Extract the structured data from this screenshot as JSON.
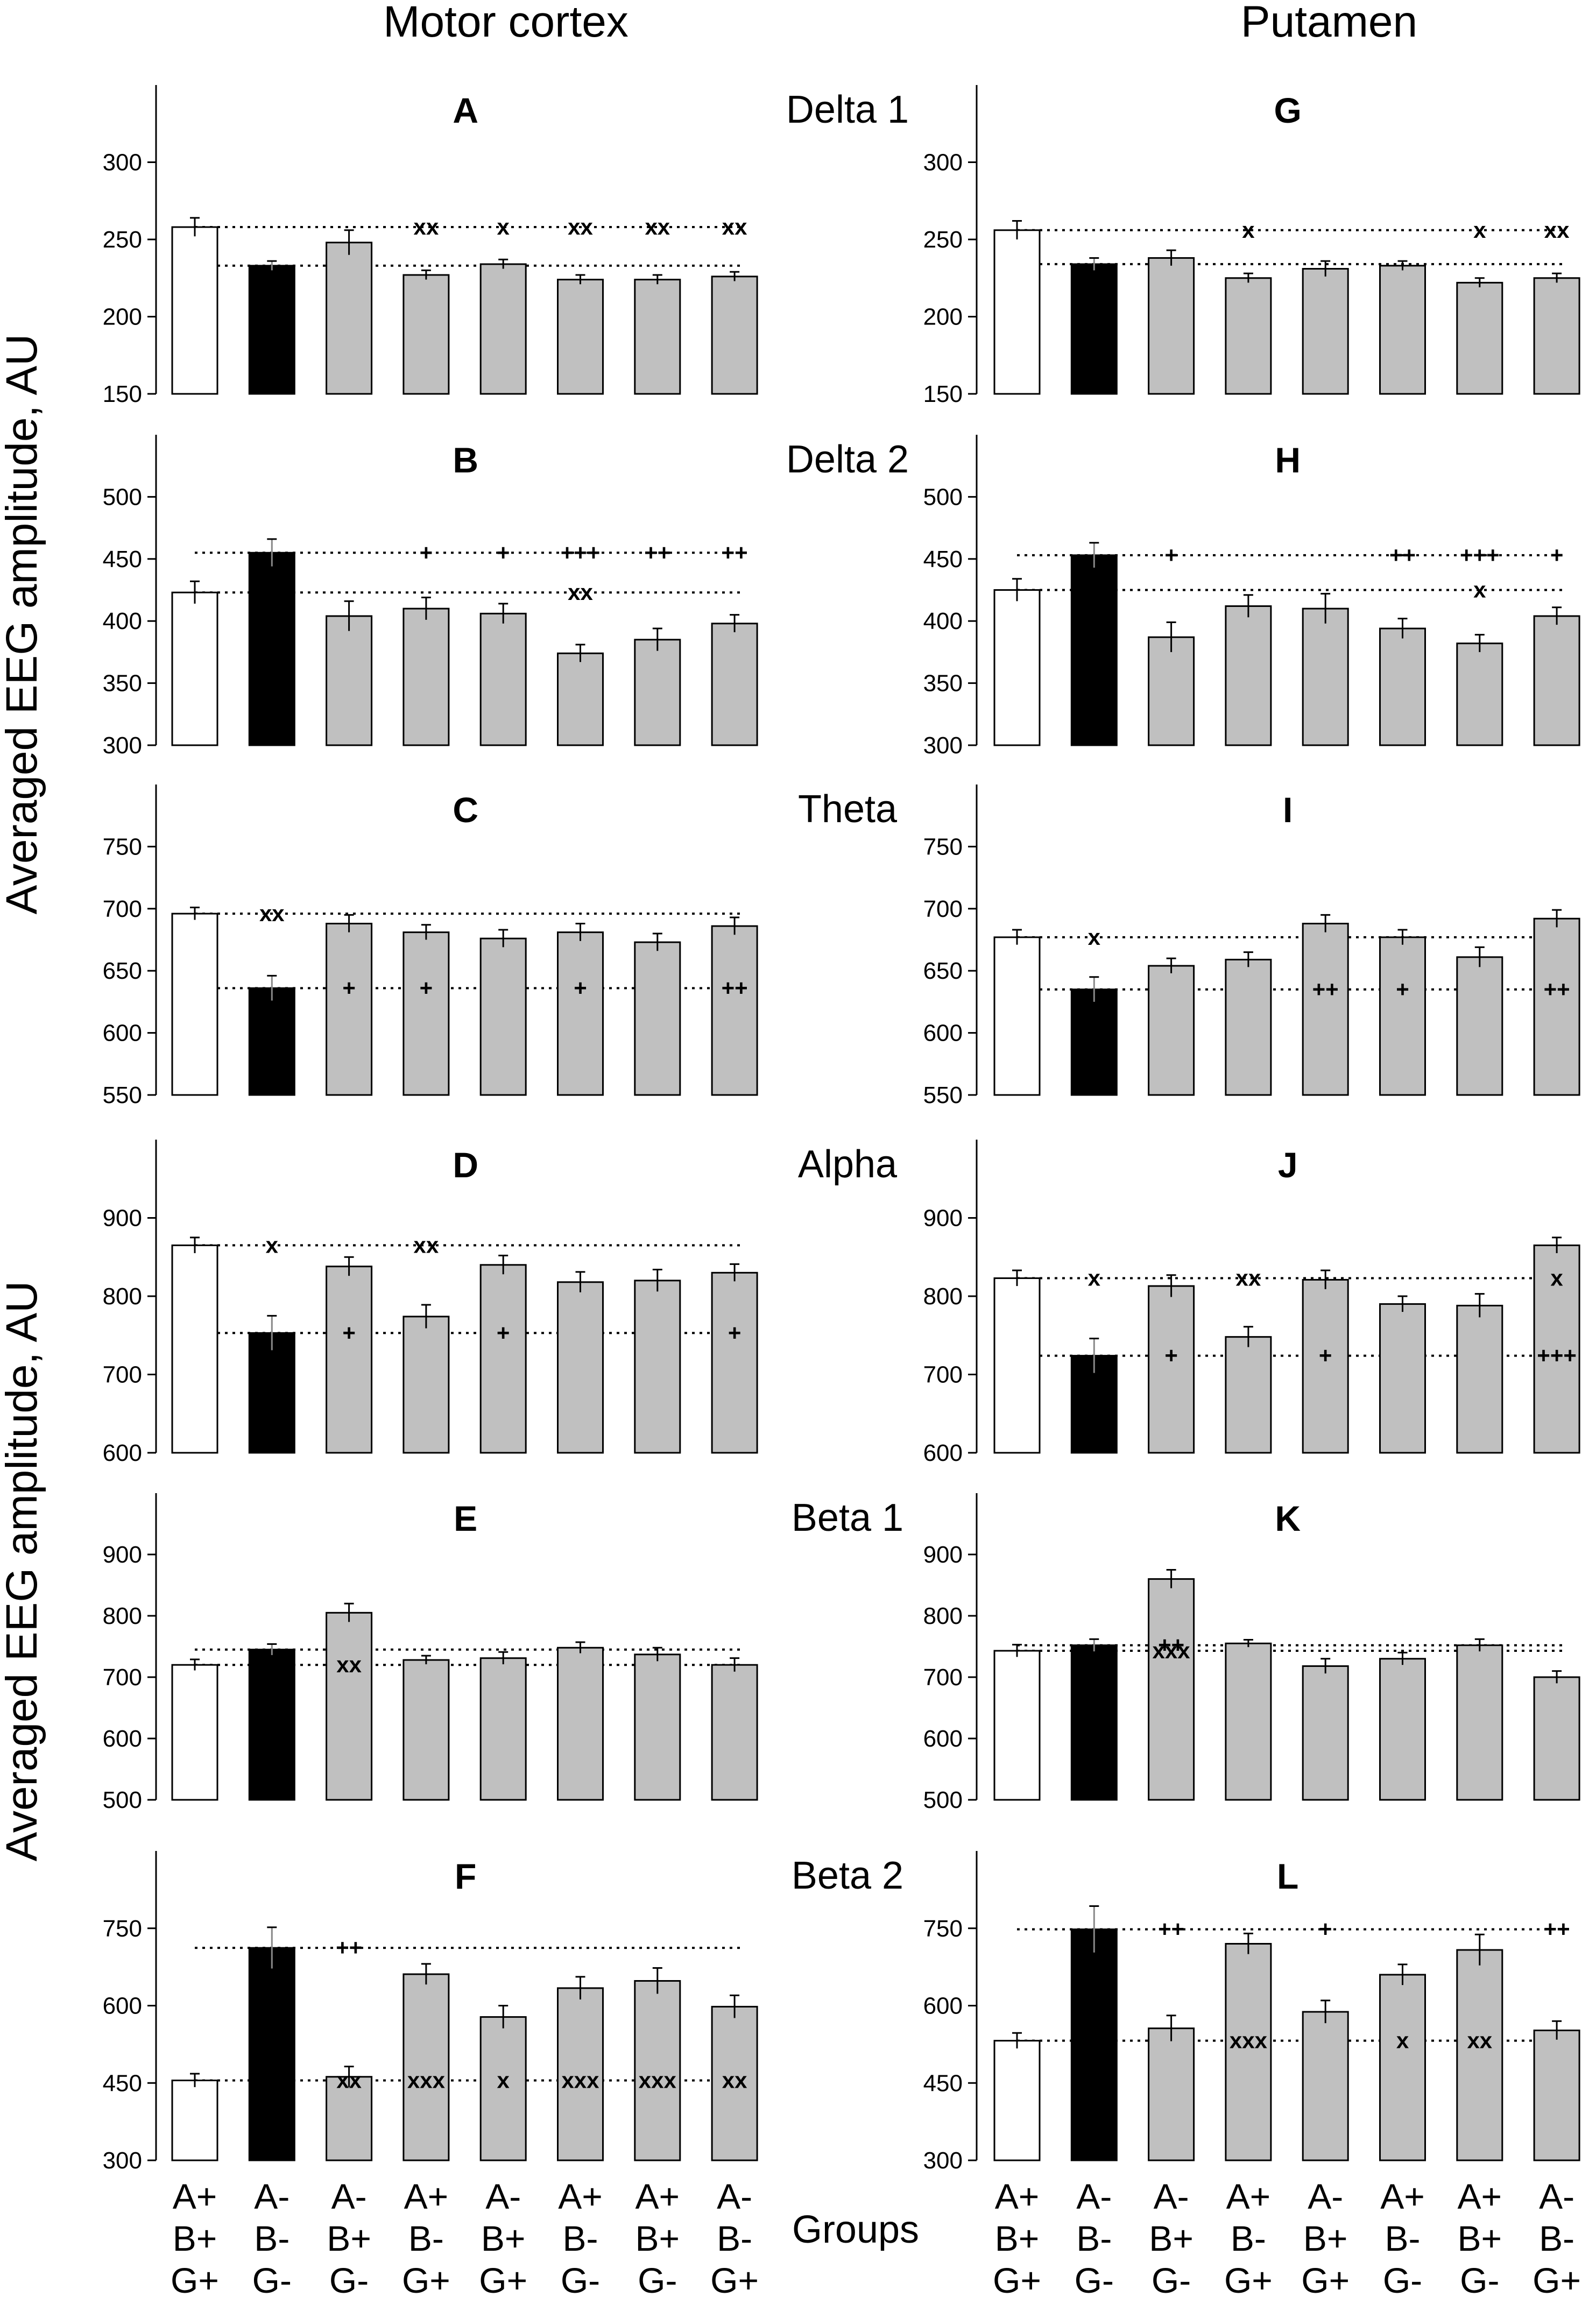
{
  "figure": {
    "left_title": "Motor cortex",
    "right_title": "Putamen",
    "ylabel_top": "Averaged EEG amplitude, AU",
    "ylabel_bottom": "Averaged EEG amplitude, AU",
    "groups_label": "Groups",
    "group_labels": [
      [
        "A+",
        "B+",
        "G+"
      ],
      [
        "A-",
        "B-",
        "G-"
      ],
      [
        "A-",
        "B+",
        "G-"
      ],
      [
        "A+",
        "B-",
        "G+"
      ],
      [
        "A-",
        "B+",
        "G+"
      ],
      [
        "A+",
        "B-",
        "G-"
      ],
      [
        "A+",
        "B+",
        "G-"
      ],
      [
        "A-",
        "B-",
        "G+"
      ]
    ],
    "bar_fills": [
      "#ffffff",
      "#000000",
      "#c0c0c0",
      "#c0c0c0",
      "#c0c0c0",
      "#c0c0c0",
      "#c0c0c0",
      "#c0c0c0"
    ]
  },
  "chart_data": [
    {
      "type": "bar",
      "panel": "A",
      "band": "Delta 1",
      "region": "Motor cortex",
      "ylim": [
        150,
        350
      ],
      "yticks": [
        150,
        200,
        250,
        300
      ],
      "categories": [
        "A+B+G+",
        "A-B-G-",
        "A-B+G-",
        "A+B-G+",
        "A-B+G+",
        "A+B-G-",
        "A+B+G-",
        "A-B-G+"
      ],
      "values": [
        258,
        233,
        248,
        227,
        234,
        224,
        224,
        226
      ],
      "errors": [
        6,
        3,
        8,
        3,
        3,
        3,
        3,
        3
      ],
      "ref_lines": [
        258,
        233
      ],
      "annotations": [
        {
          "group": 3,
          "value": 258,
          "text": "xx",
          "color": "#000000"
        },
        {
          "group": 4,
          "value": 258,
          "text": "x",
          "color": "#000000"
        },
        {
          "group": 5,
          "value": 258,
          "text": "xx",
          "color": "#000000"
        },
        {
          "group": 6,
          "value": 258,
          "text": "xx",
          "color": "#000000"
        },
        {
          "group": 7,
          "value": 258,
          "text": "xx",
          "color": "#000000"
        }
      ]
    },
    {
      "type": "bar",
      "panel": "B",
      "band": "Delta 2",
      "region": "Motor cortex",
      "ylim": [
        300,
        550
      ],
      "yticks": [
        300,
        350,
        400,
        450,
        500
      ],
      "categories": [
        "A+B+G+",
        "A-B-G-",
        "A-B+G-",
        "A+B-G+",
        "A-B+G+",
        "A+B-G-",
        "A+B+G-",
        "A-B-G+"
      ],
      "values": [
        423,
        455,
        404,
        410,
        406,
        374,
        385,
        398
      ],
      "errors": [
        9,
        11,
        12,
        9,
        8,
        7,
        9,
        7
      ],
      "ref_lines": [
        455,
        423
      ],
      "annotations": [
        {
          "group": 3,
          "value": 455,
          "text": "+",
          "color": "#000000"
        },
        {
          "group": 4,
          "value": 455,
          "text": "+",
          "color": "#000000"
        },
        {
          "group": 5,
          "value": 455,
          "text": "+++",
          "color": "#000000"
        },
        {
          "group": 6,
          "value": 455,
          "text": "++",
          "color": "#000000"
        },
        {
          "group": 7,
          "value": 455,
          "text": "++",
          "color": "#000000"
        },
        {
          "group": 5,
          "value": 423,
          "text": "xx",
          "color": "#000000"
        }
      ]
    },
    {
      "type": "bar",
      "panel": "C",
      "band": "Theta",
      "region": "Motor cortex",
      "ylim": [
        550,
        800
      ],
      "yticks": [
        550,
        600,
        650,
        700,
        750
      ],
      "categories": [
        "A+B+G+",
        "A-B-G-",
        "A-B+G-",
        "A+B-G+",
        "A-B+G+",
        "A+B-G-",
        "A+B+G-",
        "A-B-G+"
      ],
      "values": [
        696,
        636,
        688,
        681,
        676,
        681,
        673,
        686
      ],
      "errors": [
        5,
        10,
        7,
        6,
        7,
        7,
        7,
        7
      ],
      "ref_lines": [
        696,
        636
      ],
      "annotations": [
        {
          "group": 1,
          "value": 696,
          "text": "xx",
          "color": "#000000"
        },
        {
          "group": 2,
          "value": 636,
          "text": "+",
          "color": "#000000"
        },
        {
          "group": 3,
          "value": 636,
          "text": "+",
          "color": "#000000"
        },
        {
          "group": 5,
          "value": 636,
          "text": "+",
          "color": "#000000"
        },
        {
          "group": 7,
          "value": 636,
          "text": "++",
          "color": "#000000"
        }
      ]
    },
    {
      "type": "bar",
      "panel": "D",
      "band": "Alpha",
      "region": "Motor cortex",
      "ylim": [
        600,
        1000
      ],
      "yticks": [
        600,
        700,
        800,
        900
      ],
      "categories": [
        "A+B+G+",
        "A-B-G-",
        "A-B+G-",
        "A+B-G+",
        "A-B+G+",
        "A+B-G-",
        "A+B+G-",
        "A-B-G+"
      ],
      "values": [
        865,
        753,
        838,
        774,
        840,
        818,
        820,
        830
      ],
      "errors": [
        10,
        22,
        12,
        15,
        12,
        13,
        14,
        11
      ],
      "ref_lines": [
        865,
        753
      ],
      "annotations": [
        {
          "group": 1,
          "value": 865,
          "text": "x",
          "color": "#000000"
        },
        {
          "group": 3,
          "value": 865,
          "text": "xx",
          "color": "#000000"
        },
        {
          "group": 2,
          "value": 753,
          "text": "+",
          "color": "#000000"
        },
        {
          "group": 4,
          "value": 753,
          "text": "+",
          "color": "#000000"
        },
        {
          "group": 7,
          "value": 753,
          "text": "+",
          "color": "#000000"
        }
      ]
    },
    {
      "type": "bar",
      "panel": "E",
      "band": "Beta 1",
      "region": "Motor cortex",
      "ylim": [
        500,
        1000
      ],
      "yticks": [
        500,
        600,
        700,
        800,
        900
      ],
      "categories": [
        "A+B+G+",
        "A-B-G-",
        "A-B+G-",
        "A+B-G+",
        "A-B+G+",
        "A+B-G-",
        "A+B+G-",
        "A-B-G+"
      ],
      "values": [
        720,
        745,
        805,
        728,
        731,
        748,
        737,
        720
      ],
      "errors": [
        9,
        9,
        15,
        7,
        10,
        9,
        11,
        11
      ],
      "ref_lines": [
        745,
        720
      ],
      "annotations": [
        {
          "group": 2,
          "value": 720,
          "text": "xx",
          "color": "#000000"
        }
      ]
    },
    {
      "type": "bar",
      "panel": "F",
      "band": "Beta 2",
      "region": "Motor cortex",
      "ylim": [
        300,
        900
      ],
      "yticks": [
        300,
        450,
        600,
        750
      ],
      "categories": [
        "A+B+G+",
        "A-B-G-",
        "A-B+G-",
        "A+B-G+",
        "A-B+G+",
        "A+B-G-",
        "A+B+G-",
        "A-B-G+"
      ],
      "values": [
        455,
        712,
        462,
        661,
        578,
        634,
        648,
        598
      ],
      "errors": [
        13,
        40,
        20,
        20,
        22,
        22,
        25,
        22
      ],
      "ref_lines": [
        712,
        455
      ],
      "annotations": [
        {
          "group": 2,
          "value": 712,
          "text": "++",
          "color": "#000000"
        },
        {
          "group": 1,
          "value": 455,
          "text": "xxx",
          "color": "#ffffff"
        },
        {
          "group": 2,
          "value": 455,
          "text": "xx",
          "color": "#000000"
        },
        {
          "group": 3,
          "value": 455,
          "text": "xxx",
          "color": "#000000"
        },
        {
          "group": 4,
          "value": 455,
          "text": "x",
          "color": "#000000"
        },
        {
          "group": 5,
          "value": 455,
          "text": "xxx",
          "color": "#000000"
        },
        {
          "group": 6,
          "value": 455,
          "text": "xxx",
          "color": "#000000"
        },
        {
          "group": 7,
          "value": 455,
          "text": "xx",
          "color": "#000000"
        }
      ]
    },
    {
      "type": "bar",
      "panel": "G",
      "band": "Delta 1",
      "region": "Putamen",
      "ylim": [
        150,
        350
      ],
      "yticks": [
        150,
        200,
        250,
        300
      ],
      "categories": [
        "A+B+G+",
        "A-B-G-",
        "A-B+G-",
        "A+B-G+",
        "A-B+G+",
        "A+B-G-",
        "A+B+G-",
        "A-B-G+"
      ],
      "values": [
        256,
        234,
        238,
        225,
        231,
        233,
        222,
        225
      ],
      "errors": [
        6,
        4,
        5,
        3,
        5,
        3,
        3,
        3
      ],
      "ref_lines": [
        256,
        234
      ],
      "annotations": [
        {
          "group": 3,
          "value": 256,
          "text": "x",
          "color": "#000000"
        },
        {
          "group": 6,
          "value": 256,
          "text": "x",
          "color": "#000000"
        },
        {
          "group": 7,
          "value": 256,
          "text": "xx",
          "color": "#000000"
        }
      ]
    },
    {
      "type": "bar",
      "panel": "H",
      "band": "Delta 2",
      "region": "Putamen",
      "ylim": [
        300,
        550
      ],
      "yticks": [
        300,
        350,
        400,
        450,
        500
      ],
      "categories": [
        "A+B+G+",
        "A-B-G-",
        "A-B+G-",
        "A+B-G+",
        "A-B+G+",
        "A+B-G-",
        "A+B+G-",
        "A-B-G+"
      ],
      "values": [
        425,
        453,
        387,
        412,
        410,
        394,
        382,
        404
      ],
      "errors": [
        9,
        10,
        12,
        9,
        12,
        8,
        7,
        7
      ],
      "ref_lines": [
        453,
        425
      ],
      "annotations": [
        {
          "group": 2,
          "value": 453,
          "text": "+",
          "color": "#000000"
        },
        {
          "group": 5,
          "value": 453,
          "text": "++",
          "color": "#000000"
        },
        {
          "group": 6,
          "value": 453,
          "text": "+++",
          "color": "#000000"
        },
        {
          "group": 7,
          "value": 453,
          "text": "+",
          "color": "#000000"
        },
        {
          "group": 6,
          "value": 425,
          "text": "x",
          "color": "#000000"
        }
      ]
    },
    {
      "type": "bar",
      "panel": "I",
      "band": "Theta",
      "region": "Putamen",
      "ylim": [
        550,
        800
      ],
      "yticks": [
        550,
        600,
        650,
        700,
        750
      ],
      "categories": [
        "A+B+G+",
        "A-B-G-",
        "A-B+G-",
        "A+B-G+",
        "A-B+G+",
        "A+B-G-",
        "A+B+G-",
        "A-B-G+"
      ],
      "values": [
        677,
        635,
        654,
        659,
        688,
        677,
        661,
        692
      ],
      "errors": [
        6,
        10,
        6,
        6,
        7,
        6,
        8,
        7
      ],
      "ref_lines": [
        677,
        635
      ],
      "annotations": [
        {
          "group": 1,
          "value": 677,
          "text": "x",
          "color": "#000000"
        },
        {
          "group": 4,
          "value": 635,
          "text": "++",
          "color": "#000000"
        },
        {
          "group": 5,
          "value": 635,
          "text": "+",
          "color": "#000000"
        },
        {
          "group": 7,
          "value": 635,
          "text": "++",
          "color": "#000000"
        }
      ]
    },
    {
      "type": "bar",
      "panel": "J",
      "band": "Alpha",
      "region": "Putamen",
      "ylim": [
        600,
        1000
      ],
      "yticks": [
        600,
        700,
        800,
        900
      ],
      "categories": [
        "A+B+G+",
        "A-B-G-",
        "A-B+G-",
        "A+B-G+",
        "A-B+G+",
        "A+B-G-",
        "A+B+G-",
        "A-B-G+"
      ],
      "values": [
        823,
        724,
        813,
        748,
        821,
        790,
        788,
        865
      ],
      "errors": [
        10,
        22,
        14,
        13,
        12,
        10,
        15,
        10
      ],
      "ref_lines": [
        823,
        724
      ],
      "annotations": [
        {
          "group": 1,
          "value": 823,
          "text": "x",
          "color": "#000000"
        },
        {
          "group": 3,
          "value": 823,
          "text": "xx",
          "color": "#000000"
        },
        {
          "group": 7,
          "value": 823,
          "text": "x",
          "color": "#000000"
        },
        {
          "group": 2,
          "value": 724,
          "text": "+",
          "color": "#000000"
        },
        {
          "group": 4,
          "value": 724,
          "text": "+",
          "color": "#000000"
        },
        {
          "group": 7,
          "value": 724,
          "text": "+++",
          "color": "#000000"
        }
      ]
    },
    {
      "type": "bar",
      "panel": "K",
      "band": "Beta 1",
      "region": "Putamen",
      "ylim": [
        500,
        1000
      ],
      "yticks": [
        500,
        600,
        700,
        800,
        900
      ],
      "categories": [
        "A+B+G+",
        "A-B-G-",
        "A-B+G-",
        "A+B-G+",
        "A-B+G+",
        "A+B-G-",
        "A+B+G-",
        "A-B-G+"
      ],
      "values": [
        743,
        752,
        860,
        755,
        718,
        730,
        752,
        700
      ],
      "errors": [
        10,
        10,
        15,
        6,
        12,
        10,
        10,
        10
      ],
      "ref_lines": [
        752,
        743
      ],
      "annotations": [
        {
          "group": 2,
          "value": 752,
          "text": "++",
          "color": "#000000"
        },
        {
          "group": 2,
          "value": 743,
          "text": "xxx",
          "color": "#000000"
        }
      ]
    },
    {
      "type": "bar",
      "panel": "L",
      "band": "Beta 2",
      "region": "Putamen",
      "ylim": [
        300,
        900
      ],
      "yticks": [
        300,
        450,
        600,
        750
      ],
      "categories": [
        "A+B+G+",
        "A-B-G-",
        "A-B+G-",
        "A+B-G+",
        "A-B+G+",
        "A+B-G-",
        "A+B+G-",
        "A-B-G+"
      ],
      "values": [
        532,
        748,
        556,
        720,
        588,
        660,
        708,
        552
      ],
      "errors": [
        15,
        45,
        25,
        20,
        22,
        20,
        30,
        18
      ],
      "ref_lines": [
        748,
        532
      ],
      "annotations": [
        {
          "group": 2,
          "value": 748,
          "text": "++",
          "color": "#000000"
        },
        {
          "group": 4,
          "value": 748,
          "text": "+",
          "color": "#000000"
        },
        {
          "group": 7,
          "value": 748,
          "text": "++",
          "color": "#000000"
        },
        {
          "group": 1,
          "value": 532,
          "text": "xx",
          "color": "#ffffff"
        },
        {
          "group": 3,
          "value": 532,
          "text": "xxx",
          "color": "#000000"
        },
        {
          "group": 5,
          "value": 532,
          "text": "x",
          "color": "#000000"
        },
        {
          "group": 6,
          "value": 532,
          "text": "xx",
          "color": "#000000"
        }
      ]
    }
  ]
}
